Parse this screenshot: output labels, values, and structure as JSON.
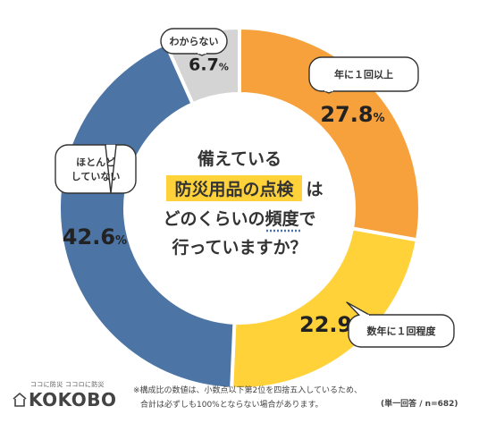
{
  "chart_data": {
    "type": "pie",
    "title": "備えている防災用品の点検はどのくらいの頻度で行っていますか？",
    "title_lines": [
      "備えている",
      "防災用品の点検",
      "は",
      "どのくらいの",
      "頻度",
      "で",
      "行っていますか？"
    ],
    "categories": [
      "年に１回以上",
      "数年に１回程度",
      "ほとんどしていない",
      "わからない"
    ],
    "values": [
      27.8,
      22.9,
      42.6,
      6.7
    ],
    "value_labels": [
      "27.8",
      "22.9",
      "42.6",
      "6.7"
    ],
    "unit": "%",
    "colors": [
      "#F7A13C",
      "#FFD23A",
      "#4C74A4",
      "#D4D4D4"
    ],
    "callouts": [
      {
        "lines": [
          "年に１回以上"
        ]
      },
      {
        "lines": [
          "数年に１回程度"
        ]
      },
      {
        "lines": [
          "ほとんど",
          "していない"
        ]
      },
      {
        "lines": [
          "わからない"
        ]
      }
    ]
  },
  "footer": {
    "note_line1": "※構成比の数値は、小数点以下第2位を四捨五入しているため、",
    "note_line2": "合計は必ずしも100%とならない場合があります。",
    "sample": "(単一回答 / n=682)"
  },
  "brand": {
    "tagline": "ココに防災 ココロに防災",
    "name": "KOKOBO"
  }
}
